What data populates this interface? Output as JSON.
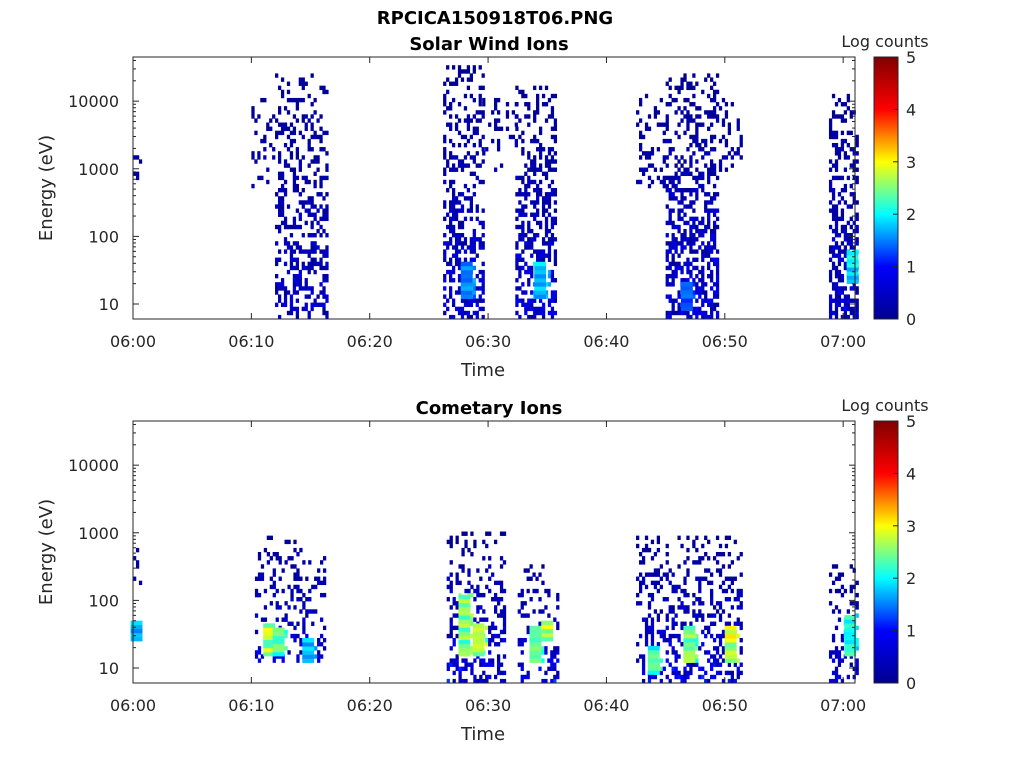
{
  "figure_title": "RPCICA150918T06.PNG",
  "colormap": {
    "stops": [
      "#00008f",
      "#0000ff",
      "#00ffff",
      "#ffff00",
      "#ff0000",
      "#800000"
    ]
  },
  "chart_data": [
    {
      "type": "heatmap",
      "title": "Solar Wind Ions",
      "xlabel": "Time",
      "ylabel": "Energy (eV)",
      "y_scale": "log",
      "xlim": [
        "06:00",
        "07:01"
      ],
      "ylim": [
        6,
        45000
      ],
      "x_ticks": [
        "06:00",
        "06:10",
        "06:20",
        "06:30",
        "06:40",
        "06:50",
        "07:00"
      ],
      "y_ticks": [
        "10",
        "100",
        "1000",
        "10000"
      ],
      "colorbar": {
        "label": "Log counts",
        "range": [
          0,
          5
        ],
        "ticks": [
          "0",
          "1",
          "2",
          "3",
          "4",
          "5"
        ]
      },
      "bursts": [
        {
          "start": "06:00.0",
          "end": "06:00.6",
          "e_min": 600,
          "e_max": 3000,
          "density": 0.35,
          "peak_low_log": 0.5,
          "bright": []
        },
        {
          "start": "06:10.0",
          "end": "06:12.0",
          "e_min": 500,
          "e_max": 12000,
          "density": 0.3,
          "peak_low_log": 0.4,
          "bright": []
        },
        {
          "start": "06:12.0",
          "end": "06:16.5",
          "e_min": 6,
          "e_max": 25000,
          "density": 0.45,
          "peak_low_log": 0.8,
          "bright": []
        },
        {
          "start": "06:26.2",
          "end": "06:29.5",
          "e_min": 6,
          "e_max": 30000,
          "density": 0.55,
          "peak_low_log": 1.0,
          "bright": [
            {
              "time": "06:28.2",
              "e_min": 12,
              "e_max": 40,
              "value": 1.8
            }
          ]
        },
        {
          "start": "06:29.5",
          "end": "06:31.2",
          "e_min": 800,
          "e_max": 12000,
          "density": 0.25,
          "peak_low_log": 0.4,
          "bright": []
        },
        {
          "start": "06:31.5",
          "end": "06:32.3",
          "e_min": 2000,
          "e_max": 12000,
          "density": 0.3,
          "peak_low_log": 0.4,
          "bright": []
        },
        {
          "start": "06:32.3",
          "end": "06:35.7",
          "e_min": 6,
          "e_max": 15000,
          "density": 0.55,
          "peak_low_log": 1.0,
          "bright": [
            {
              "time": "06:34.4",
              "e_min": 12,
              "e_max": 40,
              "value": 2.0
            }
          ]
        },
        {
          "start": "06:42.5",
          "end": "06:45.0",
          "e_min": 500,
          "e_max": 12000,
          "density": 0.3,
          "peak_low_log": 0.4,
          "bright": []
        },
        {
          "start": "06:45.0",
          "end": "06:49.5",
          "e_min": 6,
          "e_max": 25000,
          "density": 0.6,
          "peak_low_log": 1.0,
          "bright": [
            {
              "time": "06:46.8",
              "e_min": 8,
              "e_max": 20,
              "value": 1.5
            }
          ]
        },
        {
          "start": "06:49.5",
          "end": "06:51.5",
          "e_min": 800,
          "e_max": 15000,
          "density": 0.3,
          "peak_low_log": 0.4,
          "bright": []
        },
        {
          "start": "06:58.8",
          "end": "07:01.2",
          "e_min": 6,
          "e_max": 12000,
          "density": 0.6,
          "peak_low_log": 1.0,
          "bright": [
            {
              "time": "07:00.8",
              "e_min": 20,
              "e_max": 60,
              "value": 2.2
            }
          ]
        }
      ]
    },
    {
      "type": "heatmap",
      "title": "Cometary Ions",
      "xlabel": "Time",
      "ylabel": "Energy (eV)",
      "y_scale": "log",
      "xlim": [
        "06:00",
        "07:01"
      ],
      "ylim": [
        6,
        45000
      ],
      "x_ticks": [
        "06:00",
        "06:10",
        "06:20",
        "06:30",
        "06:40",
        "06:50",
        "07:00"
      ],
      "y_ticks": [
        "10",
        "100",
        "1000",
        "10000"
      ],
      "colorbar": {
        "label": "Log counts",
        "range": [
          0,
          5
        ],
        "ticks": [
          "0",
          "1",
          "2",
          "3",
          "4",
          "5"
        ]
      },
      "bursts": [
        {
          "start": "06:00.0",
          "end": "06:00.6",
          "e_min": 150,
          "e_max": 600,
          "density": 0.35,
          "peak_low_log": 0.3,
          "bright": [
            {
              "time": "06:00.3",
              "e_min": 25,
              "e_max": 45,
              "value": 2.0
            }
          ]
        },
        {
          "start": "06:10.3",
          "end": "06:16.3",
          "e_min": 12,
          "e_max": 900,
          "density": 0.35,
          "peak_low_log": 1.0,
          "bright": [
            {
              "time": "06:11.5",
              "e_min": 15,
              "e_max": 40,
              "value": 3.0
            },
            {
              "time": "06:12.3",
              "e_min": 15,
              "e_max": 35,
              "value": 2.6
            },
            {
              "time": "06:14.8",
              "e_min": 12,
              "e_max": 25,
              "value": 2.0
            }
          ]
        },
        {
          "start": "06:26.5",
          "end": "06:31.5",
          "e_min": 6,
          "e_max": 1000,
          "density": 0.4,
          "peak_low_log": 1.2,
          "bright": [
            {
              "time": "06:28.0",
              "e_min": 15,
              "e_max": 120,
              "value": 2.8
            },
            {
              "time": "06:29.2",
              "e_min": 15,
              "e_max": 40,
              "value": 3.0
            }
          ]
        },
        {
          "start": "06:32.5",
          "end": "06:36.0",
          "e_min": 6,
          "e_max": 300,
          "density": 0.4,
          "peak_low_log": 1.2,
          "bright": [
            {
              "time": "06:34.0",
              "e_min": 12,
              "e_max": 40,
              "value": 2.7
            },
            {
              "time": "06:35.0",
              "e_min": 25,
              "e_max": 45,
              "value": 3.0
            }
          ]
        },
        {
          "start": "06:42.5",
          "end": "06:51.5",
          "e_min": 6,
          "e_max": 900,
          "density": 0.4,
          "peak_low_log": 1.2,
          "bright": [
            {
              "time": "06:44.0",
              "e_min": 8,
              "e_max": 20,
              "value": 2.5
            },
            {
              "time": "06:47.0",
              "e_min": 12,
              "e_max": 40,
              "value": 2.8
            },
            {
              "time": "06:50.5",
              "e_min": 12,
              "e_max": 40,
              "value": 3.2
            }
          ]
        },
        {
          "start": "06:58.8",
          "end": "07:01.2",
          "e_min": 6,
          "e_max": 300,
          "density": 0.45,
          "peak_low_log": 1.0,
          "bright": [
            {
              "time": "07:00.6",
              "e_min": 15,
              "e_max": 60,
              "value": 2.4
            }
          ]
        }
      ]
    }
  ]
}
